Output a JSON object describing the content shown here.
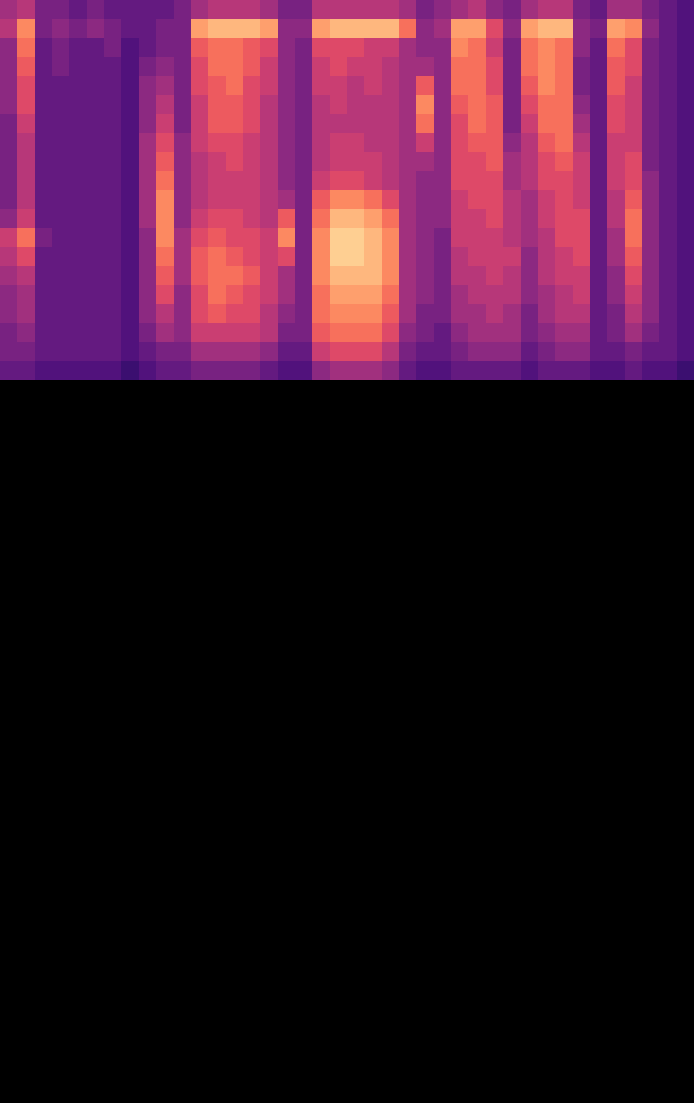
{
  "chart_data": {
    "type": "heatmap",
    "tick_labels": false,
    "xlim": [
      0,
      40
    ],
    "ylim": [
      0,
      58
    ],
    "zlim": [
      0,
      1
    ],
    "x": [
      0,
      1,
      2,
      3,
      4,
      5,
      6,
      7,
      8,
      9,
      10,
      11,
      12,
      13,
      14,
      15,
      16,
      17,
      18,
      19,
      20,
      21,
      22,
      23,
      24,
      25,
      26,
      27,
      28,
      29,
      30,
      31,
      32,
      33,
      34,
      35,
      36,
      37,
      38,
      39
    ],
    "y": [
      57,
      56,
      55,
      54,
      53,
      52,
      51,
      50,
      49,
      48,
      47,
      46,
      45,
      44,
      43,
      42,
      41,
      40,
      39,
      38
    ],
    "values": [
      [
        0.45,
        0.5,
        0.35,
        0.35,
        0.3,
        0.35,
        0.3,
        0.3,
        0.3,
        0.3,
        0.35,
        0.45,
        0.5,
        0.5,
        0.5,
        0.45,
        0.35,
        0.35,
        0.5,
        0.5,
        0.5,
        0.5,
        0.5,
        0.45,
        0.35,
        0.4,
        0.45,
        0.5,
        0.4,
        0.35,
        0.45,
        0.5,
        0.5,
        0.35,
        0.3,
        0.45,
        0.45,
        0.35,
        0.3,
        0.25
      ],
      [
        0.5,
        0.75,
        0.35,
        0.4,
        0.35,
        0.4,
        0.35,
        0.3,
        0.3,
        0.35,
        0.35,
        0.8,
        0.85,
        0.85,
        0.85,
        0.8,
        0.4,
        0.4,
        0.8,
        0.85,
        0.85,
        0.85,
        0.85,
        0.7,
        0.4,
        0.45,
        0.8,
        0.8,
        0.6,
        0.4,
        0.8,
        0.85,
        0.85,
        0.4,
        0.35,
        0.8,
        0.75,
        0.4,
        0.3,
        0.25
      ],
      [
        0.4,
        0.7,
        0.3,
        0.35,
        0.3,
        0.3,
        0.35,
        0.25,
        0.3,
        0.35,
        0.35,
        0.65,
        0.7,
        0.7,
        0.65,
        0.6,
        0.4,
        0.35,
        0.6,
        0.6,
        0.6,
        0.55,
        0.55,
        0.45,
        0.4,
        0.4,
        0.75,
        0.7,
        0.55,
        0.35,
        0.7,
        0.75,
        0.7,
        0.4,
        0.3,
        0.7,
        0.6,
        0.35,
        0.3,
        0.25
      ],
      [
        0.4,
        0.65,
        0.3,
        0.35,
        0.3,
        0.3,
        0.3,
        0.25,
        0.35,
        0.4,
        0.35,
        0.6,
        0.7,
        0.7,
        0.65,
        0.55,
        0.4,
        0.35,
        0.55,
        0.6,
        0.55,
        0.55,
        0.5,
        0.45,
        0.45,
        0.4,
        0.7,
        0.7,
        0.6,
        0.35,
        0.7,
        0.75,
        0.7,
        0.35,
        0.3,
        0.65,
        0.6,
        0.35,
        0.3,
        0.25
      ],
      [
        0.4,
        0.6,
        0.3,
        0.3,
        0.3,
        0.3,
        0.3,
        0.25,
        0.4,
        0.45,
        0.35,
        0.6,
        0.65,
        0.7,
        0.6,
        0.55,
        0.4,
        0.35,
        0.55,
        0.55,
        0.5,
        0.55,
        0.5,
        0.45,
        0.65,
        0.4,
        0.7,
        0.7,
        0.6,
        0.35,
        0.65,
        0.75,
        0.7,
        0.35,
        0.3,
        0.65,
        0.55,
        0.35,
        0.3,
        0.25
      ],
      [
        0.4,
        0.6,
        0.3,
        0.3,
        0.3,
        0.3,
        0.3,
        0.25,
        0.4,
        0.5,
        0.35,
        0.55,
        0.65,
        0.65,
        0.6,
        0.5,
        0.4,
        0.35,
        0.5,
        0.55,
        0.5,
        0.5,
        0.5,
        0.45,
        0.75,
        0.4,
        0.65,
        0.7,
        0.65,
        0.35,
        0.6,
        0.7,
        0.7,
        0.4,
        0.3,
        0.6,
        0.55,
        0.35,
        0.3,
        0.25
      ],
      [
        0.35,
        0.55,
        0.3,
        0.3,
        0.3,
        0.3,
        0.3,
        0.25,
        0.4,
        0.55,
        0.35,
        0.55,
        0.65,
        0.65,
        0.6,
        0.5,
        0.4,
        0.35,
        0.5,
        0.5,
        0.5,
        0.5,
        0.5,
        0.45,
        0.7,
        0.4,
        0.6,
        0.7,
        0.65,
        0.35,
        0.55,
        0.7,
        0.7,
        0.45,
        0.3,
        0.6,
        0.55,
        0.35,
        0.3,
        0.25
      ],
      [
        0.35,
        0.5,
        0.3,
        0.3,
        0.3,
        0.3,
        0.3,
        0.25,
        0.45,
        0.6,
        0.4,
        0.55,
        0.6,
        0.6,
        0.55,
        0.5,
        0.4,
        0.35,
        0.5,
        0.55,
        0.55,
        0.5,
        0.5,
        0.45,
        0.55,
        0.4,
        0.6,
        0.65,
        0.65,
        0.4,
        0.5,
        0.65,
        0.7,
        0.5,
        0.3,
        0.55,
        0.55,
        0.35,
        0.3,
        0.25
      ],
      [
        0.35,
        0.5,
        0.3,
        0.3,
        0.3,
        0.3,
        0.3,
        0.25,
        0.45,
        0.65,
        0.4,
        0.5,
        0.55,
        0.6,
        0.55,
        0.5,
        0.4,
        0.35,
        0.5,
        0.55,
        0.55,
        0.55,
        0.5,
        0.45,
        0.45,
        0.4,
        0.6,
        0.6,
        0.65,
        0.45,
        0.5,
        0.6,
        0.65,
        0.55,
        0.3,
        0.55,
        0.6,
        0.35,
        0.3,
        0.25
      ],
      [
        0.35,
        0.5,
        0.3,
        0.3,
        0.3,
        0.3,
        0.3,
        0.25,
        0.45,
        0.7,
        0.4,
        0.5,
        0.55,
        0.55,
        0.55,
        0.5,
        0.4,
        0.35,
        0.55,
        0.6,
        0.6,
        0.55,
        0.5,
        0.45,
        0.4,
        0.4,
        0.6,
        0.6,
        0.6,
        0.45,
        0.5,
        0.6,
        0.6,
        0.55,
        0.3,
        0.55,
        0.6,
        0.4,
        0.3,
        0.25
      ],
      [
        0.35,
        0.5,
        0.3,
        0.3,
        0.3,
        0.3,
        0.3,
        0.25,
        0.45,
        0.75,
        0.4,
        0.5,
        0.55,
        0.55,
        0.55,
        0.5,
        0.45,
        0.35,
        0.65,
        0.75,
        0.75,
        0.7,
        0.6,
        0.45,
        0.4,
        0.4,
        0.55,
        0.6,
        0.6,
        0.5,
        0.45,
        0.55,
        0.6,
        0.55,
        0.3,
        0.5,
        0.65,
        0.4,
        0.3,
        0.25
      ],
      [
        0.4,
        0.55,
        0.3,
        0.3,
        0.3,
        0.3,
        0.3,
        0.25,
        0.45,
        0.75,
        0.4,
        0.55,
        0.6,
        0.6,
        0.55,
        0.5,
        0.65,
        0.35,
        0.7,
        0.85,
        0.85,
        0.8,
        0.7,
        0.45,
        0.4,
        0.4,
        0.55,
        0.55,
        0.6,
        0.5,
        0.45,
        0.55,
        0.6,
        0.6,
        0.3,
        0.5,
        0.7,
        0.4,
        0.3,
        0.25
      ],
      [
        0.55,
        0.7,
        0.35,
        0.3,
        0.3,
        0.3,
        0.3,
        0.25,
        0.4,
        0.75,
        0.45,
        0.6,
        0.65,
        0.6,
        0.6,
        0.55,
        0.75,
        0.35,
        0.75,
        0.9,
        0.9,
        0.85,
        0.75,
        0.45,
        0.4,
        0.35,
        0.55,
        0.55,
        0.55,
        0.5,
        0.45,
        0.5,
        0.6,
        0.6,
        0.3,
        0.45,
        0.7,
        0.4,
        0.3,
        0.25
      ],
      [
        0.5,
        0.6,
        0.3,
        0.3,
        0.3,
        0.3,
        0.3,
        0.25,
        0.4,
        0.7,
        0.45,
        0.65,
        0.7,
        0.65,
        0.6,
        0.55,
        0.6,
        0.35,
        0.75,
        0.9,
        0.9,
        0.85,
        0.75,
        0.45,
        0.4,
        0.35,
        0.5,
        0.55,
        0.55,
        0.55,
        0.4,
        0.5,
        0.55,
        0.6,
        0.3,
        0.45,
        0.65,
        0.4,
        0.3,
        0.25
      ],
      [
        0.45,
        0.5,
        0.3,
        0.3,
        0.3,
        0.3,
        0.3,
        0.25,
        0.4,
        0.65,
        0.45,
        0.65,
        0.7,
        0.7,
        0.65,
        0.55,
        0.45,
        0.35,
        0.75,
        0.85,
        0.85,
        0.85,
        0.75,
        0.45,
        0.4,
        0.35,
        0.5,
        0.5,
        0.55,
        0.5,
        0.4,
        0.5,
        0.55,
        0.55,
        0.3,
        0.4,
        0.6,
        0.4,
        0.3,
        0.25
      ],
      [
        0.4,
        0.45,
        0.3,
        0.3,
        0.3,
        0.3,
        0.3,
        0.25,
        0.4,
        0.6,
        0.4,
        0.6,
        0.7,
        0.65,
        0.6,
        0.55,
        0.45,
        0.35,
        0.7,
        0.8,
        0.8,
        0.8,
        0.7,
        0.45,
        0.4,
        0.35,
        0.45,
        0.5,
        0.5,
        0.5,
        0.4,
        0.45,
        0.5,
        0.55,
        0.3,
        0.4,
        0.55,
        0.4,
        0.3,
        0.25
      ],
      [
        0.4,
        0.45,
        0.3,
        0.3,
        0.3,
        0.3,
        0.3,
        0.25,
        0.4,
        0.5,
        0.4,
        0.6,
        0.65,
        0.6,
        0.6,
        0.5,
        0.4,
        0.35,
        0.7,
        0.75,
        0.75,
        0.75,
        0.65,
        0.45,
        0.35,
        0.35,
        0.45,
        0.45,
        0.5,
        0.45,
        0.35,
        0.45,
        0.5,
        0.5,
        0.3,
        0.35,
        0.5,
        0.4,
        0.3,
        0.25
      ],
      [
        0.35,
        0.4,
        0.3,
        0.3,
        0.3,
        0.3,
        0.3,
        0.25,
        0.35,
        0.45,
        0.4,
        0.55,
        0.55,
        0.55,
        0.55,
        0.5,
        0.35,
        0.35,
        0.65,
        0.7,
        0.7,
        0.7,
        0.6,
        0.4,
        0.35,
        0.3,
        0.4,
        0.45,
        0.45,
        0.45,
        0.35,
        0.4,
        0.45,
        0.45,
        0.3,
        0.35,
        0.45,
        0.35,
        0.3,
        0.25
      ],
      [
        0.35,
        0.35,
        0.3,
        0.3,
        0.3,
        0.3,
        0.3,
        0.25,
        0.3,
        0.35,
        0.35,
        0.45,
        0.45,
        0.45,
        0.45,
        0.4,
        0.3,
        0.3,
        0.55,
        0.6,
        0.6,
        0.6,
        0.5,
        0.35,
        0.3,
        0.3,
        0.35,
        0.4,
        0.4,
        0.4,
        0.3,
        0.35,
        0.4,
        0.4,
        0.3,
        0.3,
        0.35,
        0.3,
        0.3,
        0.25
      ],
      [
        0.3,
        0.3,
        0.25,
        0.25,
        0.25,
        0.25,
        0.25,
        0.2,
        0.25,
        0.3,
        0.3,
        0.35,
        0.35,
        0.35,
        0.35,
        0.3,
        0.25,
        0.25,
        0.4,
        0.45,
        0.45,
        0.45,
        0.4,
        0.3,
        0.25,
        0.25,
        0.3,
        0.3,
        0.3,
        0.3,
        0.25,
        0.3,
        0.3,
        0.3,
        0.25,
        0.25,
        0.3,
        0.25,
        0.25,
        0.2
      ]
    ]
  }
}
